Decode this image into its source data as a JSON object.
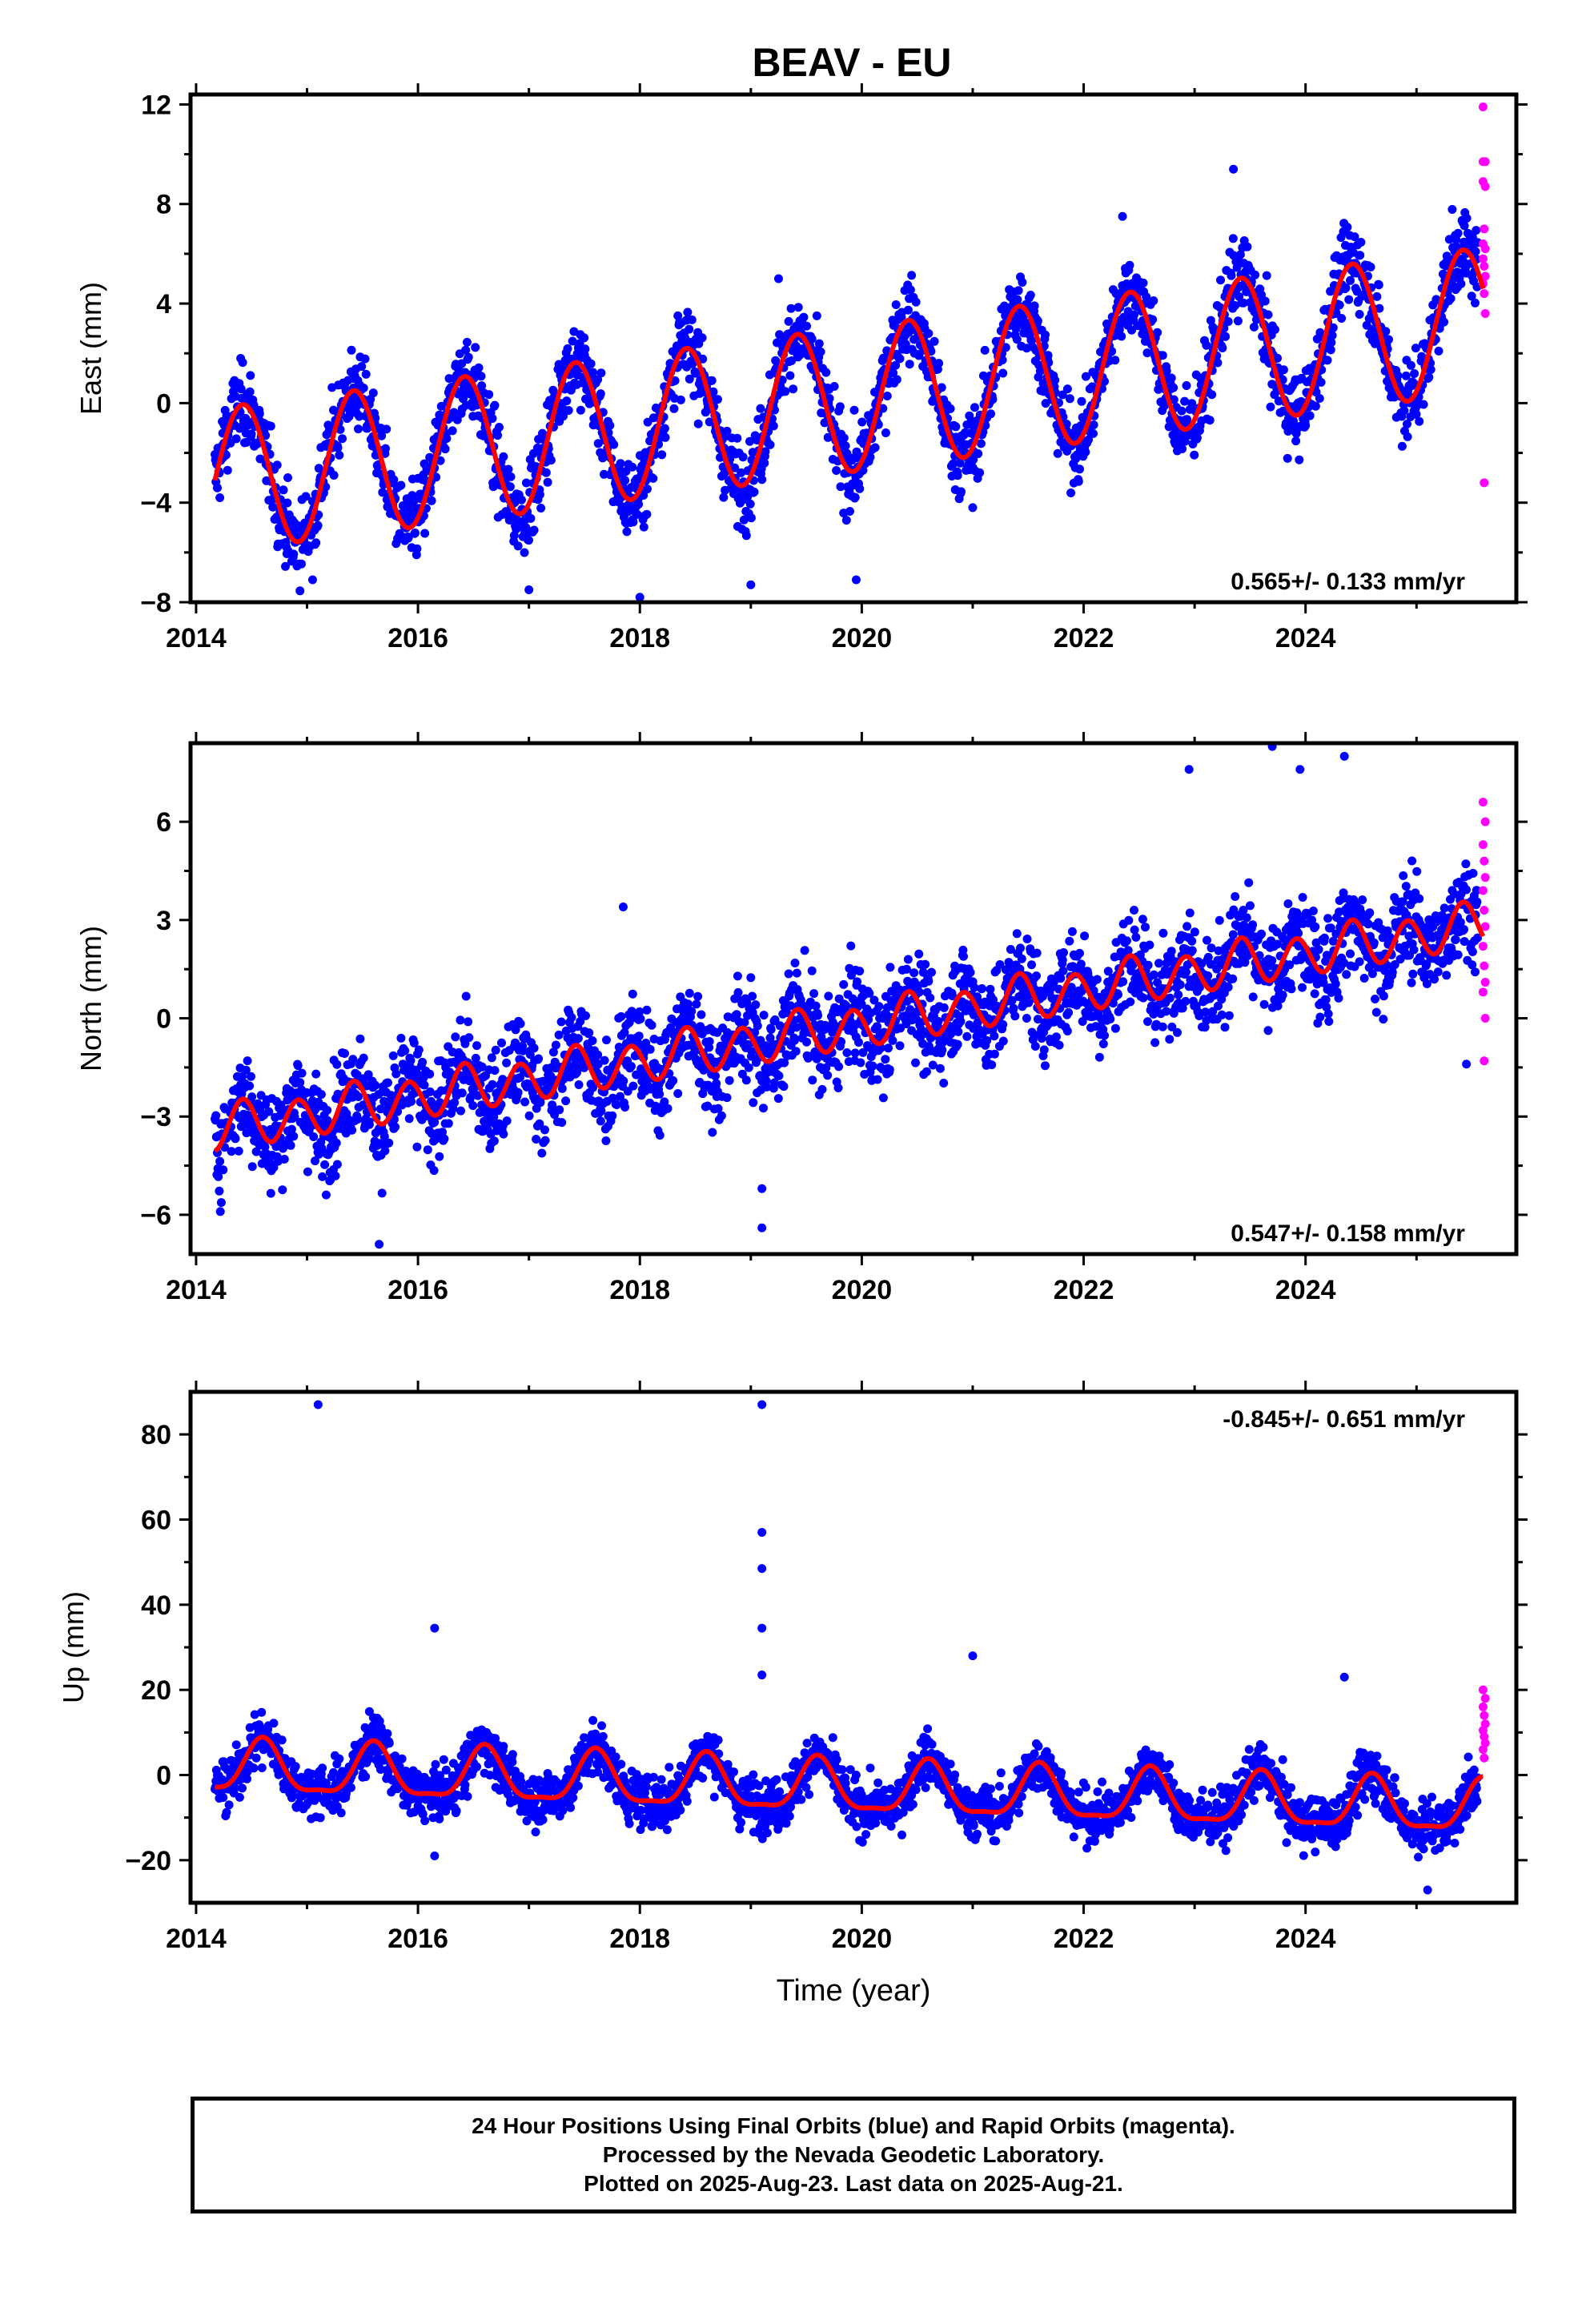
{
  "title": "BEAV - EU",
  "caption": [
    "24 Hour Positions Using Final Orbits (blue) and Rapid Orbits (magenta).",
    "Processed by the Nevada Geodetic Laboratory.",
    "Plotted on 2025-Aug-23. Last data on 2025-Aug-21."
  ],
  "colors": {
    "final": "#0000ff",
    "rapid": "#ff00ff",
    "model": "#ff0000",
    "frame": "#000000"
  },
  "chart_data": [
    {
      "type": "scatter",
      "title": "BEAV - EU",
      "ylabel": "East (mm)",
      "xlabel": "",
      "xlim": [
        2013.95,
        2025.9
      ],
      "ylim": [
        -8,
        12.4
      ],
      "xticks": [
        2014,
        2016,
        2018,
        2020,
        2022,
        2024
      ],
      "yticks": [
        -8,
        -4,
        0,
        4,
        8,
        12
      ],
      "rate_label": "0.565+/- 0.133 mm/yr",
      "rate_position": "bottom-right",
      "model": {
        "start": 2014.17,
        "end": 2025.6,
        "offset": -3.1,
        "rate": 0.565,
        "annual": 2.9,
        "semiannual": 0.0,
        "phase_peak": 0.42
      },
      "final_series": {
        "start": 2014.17,
        "end": 2025.55,
        "scatter": 1.1,
        "outliers": [
          {
            "x": 2015.05,
            "y": -7.1
          },
          {
            "x": 2018.0,
            "y": -7.8
          },
          {
            "x": 2019.0,
            "y": -7.3
          },
          {
            "x": 2019.25,
            "y": 5.0
          },
          {
            "x": 2021.0,
            "y": -4.2
          },
          {
            "x": 2023.35,
            "y": 9.4
          },
          {
            "x": 2022.35,
            "y": 7.5
          },
          {
            "x": 2019.95,
            "y": -7.1
          },
          {
            "x": 2017.0,
            "y": -7.5
          }
        ]
      },
      "rapid_points": [
        {
          "x": 2025.6,
          "y": 11.9
        },
        {
          "x": 2025.6,
          "y": 9.7
        },
        {
          "x": 2025.62,
          "y": 9.7
        },
        {
          "x": 2025.6,
          "y": 8.9
        },
        {
          "x": 2025.62,
          "y": 8.7
        },
        {
          "x": 2025.61,
          "y": 7.0
        },
        {
          "x": 2025.6,
          "y": 6.4
        },
        {
          "x": 2025.62,
          "y": 6.2
        },
        {
          "x": 2025.6,
          "y": 5.8
        },
        {
          "x": 2025.61,
          "y": 5.5
        },
        {
          "x": 2025.62,
          "y": 5.1
        },
        {
          "x": 2025.6,
          "y": 4.8
        },
        {
          "x": 2025.61,
          "y": 4.4
        },
        {
          "x": 2025.62,
          "y": 3.6
        },
        {
          "x": 2025.61,
          "y": -3.2
        }
      ]
    },
    {
      "type": "scatter",
      "title": "",
      "ylabel": "North (mm)",
      "xlabel": "",
      "xlim": [
        2013.95,
        2025.9
      ],
      "ylim": [
        -7.2,
        8.4
      ],
      "xticks": [
        2014,
        2016,
        2018,
        2020,
        2022,
        2024
      ],
      "yticks": [
        -6,
        -3,
        0,
        3,
        6
      ],
      "rate_label": "0.547+/- 0.158 mm/yr",
      "rate_position": "bottom-right",
      "model": {
        "start": 2014.17,
        "end": 2025.6,
        "offset": -3.4,
        "rate": 0.547,
        "annual": 0.15,
        "semiannual": 0.65,
        "phase_peak": 0.42
      },
      "final_series": {
        "start": 2014.17,
        "end": 2025.55,
        "scatter": 1.05,
        "outliers": [
          {
            "x": 2015.65,
            "y": -6.9
          },
          {
            "x": 2019.1,
            "y": -6.4
          },
          {
            "x": 2019.1,
            "y": -5.2
          },
          {
            "x": 2022.95,
            "y": 7.6
          },
          {
            "x": 2023.7,
            "y": 8.3
          },
          {
            "x": 2023.95,
            "y": 7.6
          },
          {
            "x": 2024.35,
            "y": 8.0
          },
          {
            "x": 2025.45,
            "y": -1.4
          },
          {
            "x": 2017.85,
            "y": 3.4
          }
        ]
      },
      "rapid_points": [
        {
          "x": 2025.6,
          "y": 6.6
        },
        {
          "x": 2025.62,
          "y": 6.0
        },
        {
          "x": 2025.6,
          "y": 5.3
        },
        {
          "x": 2025.61,
          "y": 4.8
        },
        {
          "x": 2025.62,
          "y": 4.3
        },
        {
          "x": 2025.6,
          "y": 3.9
        },
        {
          "x": 2025.61,
          "y": 3.3
        },
        {
          "x": 2025.62,
          "y": 2.8
        },
        {
          "x": 2025.6,
          "y": 2.2
        },
        {
          "x": 2025.61,
          "y": 1.6
        },
        {
          "x": 2025.62,
          "y": 1.1
        },
        {
          "x": 2025.6,
          "y": 0.8
        },
        {
          "x": 2025.62,
          "y": 0.0
        },
        {
          "x": 2025.61,
          "y": -1.3
        }
      ]
    },
    {
      "type": "scatter",
      "title": "",
      "ylabel": "Up (mm)",
      "xlabel": "Time (year)",
      "xlim": [
        2013.95,
        2025.9
      ],
      "ylim": [
        -30,
        90
      ],
      "xticks": [
        2014,
        2016,
        2018,
        2020,
        2022,
        2024
      ],
      "yticks": [
        -20,
        0,
        20,
        40,
        60,
        80
      ],
      "rate_label": "-0.845+/- 0.651 mm/yr",
      "rate_position": "top-right",
      "model": {
        "start": 2014.17,
        "end": 2025.6,
        "offset": 1.5,
        "rate": -0.845,
        "annual": 6.0,
        "semiannual": 1.8,
        "phase_peak": 0.6
      },
      "final_series": {
        "start": 2014.17,
        "end": 2025.55,
        "scatter": 4.2,
        "outliers": [
          {
            "x": 2015.1,
            "y": 87.0
          },
          {
            "x": 2019.1,
            "y": 87.0
          },
          {
            "x": 2019.1,
            "y": 57.0
          },
          {
            "x": 2019.1,
            "y": 48.5
          },
          {
            "x": 2019.1,
            "y": 34.5
          },
          {
            "x": 2019.1,
            "y": 23.5
          },
          {
            "x": 2016.15,
            "y": 34.5
          },
          {
            "x": 2021.0,
            "y": 28.0
          },
          {
            "x": 2016.15,
            "y": -19.0
          },
          {
            "x": 2024.35,
            "y": 23.0
          },
          {
            "x": 2025.1,
            "y": -27.0
          }
        ]
      },
      "rapid_points": [
        {
          "x": 2025.6,
          "y": 20.0
        },
        {
          "x": 2025.62,
          "y": 18.0
        },
        {
          "x": 2025.6,
          "y": 16.0
        },
        {
          "x": 2025.61,
          "y": 14.0
        },
        {
          "x": 2025.62,
          "y": 12.0
        },
        {
          "x": 2025.6,
          "y": 10.5
        },
        {
          "x": 2025.61,
          "y": 9.0
        },
        {
          "x": 2025.62,
          "y": 7.5
        },
        {
          "x": 2025.6,
          "y": 6.0
        },
        {
          "x": 2025.61,
          "y": 4.0
        }
      ]
    }
  ]
}
